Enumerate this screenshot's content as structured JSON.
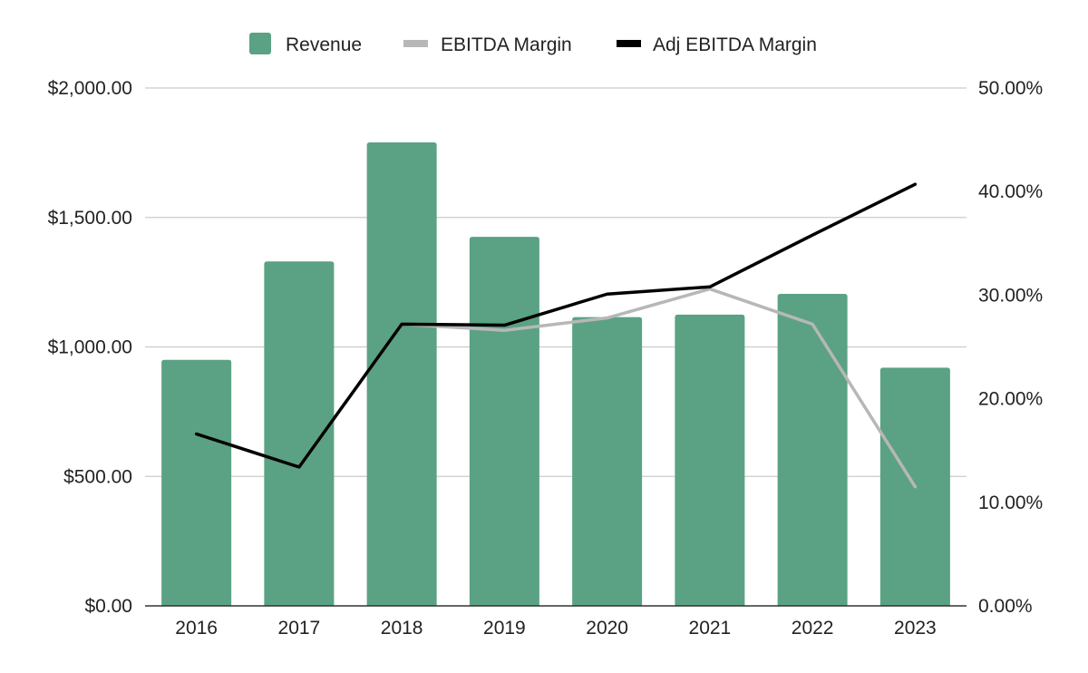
{
  "chart_data": {
    "type": "bar",
    "title": "",
    "xlabel": "",
    "ylabel": "",
    "y2label": "",
    "categories": [
      "2016",
      "2017",
      "2018",
      "2019",
      "2020",
      "2021",
      "2022",
      "2023"
    ],
    "ylim": [
      0,
      2000
    ],
    "y2lim": [
      0,
      50
    ],
    "grid": true,
    "legend_position": "top-center",
    "left_ticks": [
      {
        "value": 0,
        "label": "$0.00"
      },
      {
        "value": 500,
        "label": "$500.00"
      },
      {
        "value": 1000,
        "label": "$1,000.00"
      },
      {
        "value": 1500,
        "label": "$1,500.00"
      },
      {
        "value": 2000,
        "label": "$2,000.00"
      }
    ],
    "right_ticks": [
      {
        "value": 0,
        "label": "0.00%"
      },
      {
        "value": 10,
        "label": "10.00%"
      },
      {
        "value": 20,
        "label": "20.00%"
      },
      {
        "value": 30,
        "label": "30.00%"
      },
      {
        "value": 40,
        "label": "40.00%"
      },
      {
        "value": 50,
        "label": "50.00%"
      }
    ],
    "series": [
      {
        "name": "Revenue",
        "kind": "bar",
        "axis": "left",
        "color": "#5aa283",
        "values": [
          950,
          1330,
          1790,
          1425,
          1115,
          1125,
          1205,
          920
        ]
      },
      {
        "name": "EBITDA Margin",
        "kind": "line",
        "axis": "right",
        "color": "#b7b7b7",
        "values": [
          16.6,
          13.4,
          27.2,
          26.6,
          27.8,
          30.6,
          27.2,
          11.5
        ]
      },
      {
        "name": "Adj EBITDA Margin",
        "kind": "line",
        "axis": "right",
        "color": "#000000",
        "values": [
          16.6,
          13.4,
          27.2,
          27.1,
          30.1,
          30.8,
          35.8,
          40.7
        ]
      }
    ]
  }
}
